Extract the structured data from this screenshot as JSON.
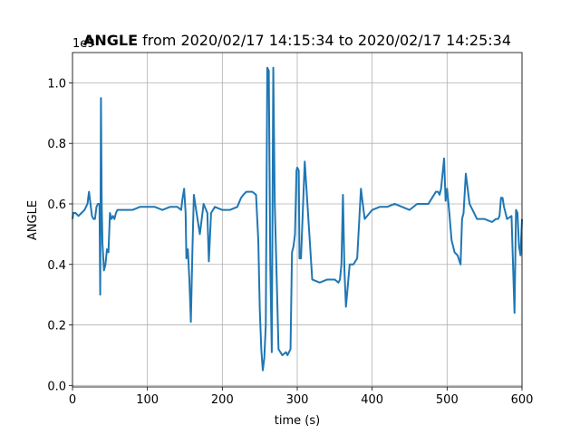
{
  "chart_data": {
    "type": "line",
    "title_bold": "ANGLE",
    "title_rest": " from 2020/02/17 14:15:34 to 2020/02/17 14:25:34",
    "xlabel": "time (s)",
    "ylabel": "ANGLE",
    "offset_label": "1e9",
    "xlim": [
      0,
      600
    ],
    "ylim": [
      -0.005,
      1.1
    ],
    "xticks": [
      0,
      100,
      200,
      300,
      400,
      500,
      600
    ],
    "xtick_labels": [
      "0",
      "100",
      "200",
      "300",
      "400",
      "500",
      "600"
    ],
    "yticks": [
      0.0,
      0.2,
      0.4,
      0.6,
      0.8,
      1.0
    ],
    "ytick_labels": [
      "0.0",
      "0.2",
      "0.4",
      "0.6",
      "0.8",
      "1.0"
    ],
    "grid": true,
    "color": "#1f77b4",
    "series": [
      {
        "x": [
          0,
          1,
          4,
          8,
          12,
          16,
          20,
          22,
          24,
          26,
          28,
          30,
          32,
          34,
          36,
          37,
          38,
          39,
          40,
          42,
          44,
          46,
          48,
          50,
          52,
          54,
          56,
          58,
          60,
          70,
          80,
          90,
          100,
          110,
          120,
          130,
          140,
          145,
          147,
          149,
          151,
          152,
          154,
          156,
          158,
          160,
          162,
          165,
          170,
          175,
          180,
          182,
          185,
          190,
          200,
          210,
          220,
          225,
          228,
          232,
          240,
          245,
          248,
          250,
          252,
          254,
          256,
          258,
          260,
          262,
          264,
          266,
          268,
          270,
          275,
          280,
          285,
          287,
          289,
          291,
          293,
          295,
          297,
          299,
          300,
          302,
          303,
          305,
          310,
          320,
          330,
          340,
          350,
          355,
          357,
          359,
          361,
          363,
          365,
          370,
          375,
          380,
          385,
          390,
          400,
          410,
          420,
          430,
          440,
          450,
          460,
          470,
          475,
          480,
          485,
          488,
          490,
          492,
          494,
          496,
          498,
          500,
          503,
          506,
          510,
          514,
          518,
          520,
          522,
          525,
          530,
          540,
          550,
          560,
          565,
          568,
          570,
          572,
          574,
          576,
          580,
          586,
          590,
          592,
          594,
          596,
          598,
          600
        ],
        "y": [
          0.55,
          0.57,
          0.57,
          0.56,
          0.57,
          0.58,
          0.6,
          0.64,
          0.6,
          0.56,
          0.55,
          0.55,
          0.59,
          0.6,
          0.6,
          0.3,
          0.95,
          0.6,
          0.47,
          0.38,
          0.4,
          0.45,
          0.44,
          0.57,
          0.55,
          0.56,
          0.55,
          0.57,
          0.58,
          0.58,
          0.58,
          0.59,
          0.59,
          0.59,
          0.58,
          0.59,
          0.59,
          0.58,
          0.62,
          0.65,
          0.57,
          0.42,
          0.45,
          0.35,
          0.21,
          0.44,
          0.63,
          0.58,
          0.5,
          0.6,
          0.57,
          0.41,
          0.57,
          0.59,
          0.58,
          0.58,
          0.59,
          0.62,
          0.63,
          0.64,
          0.64,
          0.63,
          0.48,
          0.25,
          0.12,
          0.05,
          0.09,
          0.2,
          1.05,
          1.04,
          0.4,
          0.11,
          1.05,
          0.6,
          0.12,
          0.1,
          0.11,
          0.1,
          0.11,
          0.12,
          0.44,
          0.46,
          0.5,
          0.71,
          0.72,
          0.71,
          0.42,
          0.42,
          0.74,
          0.35,
          0.34,
          0.35,
          0.35,
          0.34,
          0.35,
          0.4,
          0.63,
          0.38,
          0.26,
          0.4,
          0.4,
          0.42,
          0.65,
          0.55,
          0.58,
          0.59,
          0.59,
          0.6,
          0.59,
          0.58,
          0.6,
          0.6,
          0.6,
          0.62,
          0.64,
          0.64,
          0.63,
          0.65,
          0.7,
          0.75,
          0.61,
          0.65,
          0.57,
          0.48,
          0.44,
          0.43,
          0.4,
          0.55,
          0.57,
          0.7,
          0.6,
          0.55,
          0.55,
          0.54,
          0.55,
          0.55,
          0.56,
          0.62,
          0.62,
          0.59,
          0.55,
          0.56,
          0.24,
          0.58,
          0.57,
          0.46,
          0.43,
          0.55
        ]
      }
    ]
  }
}
